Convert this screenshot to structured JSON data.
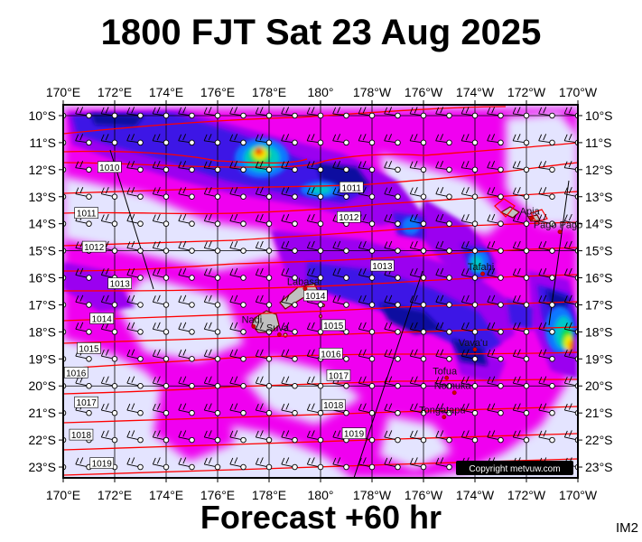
{
  "header": {
    "title": "1800 FJT Sat 23 Aug 2025"
  },
  "footer": {
    "forecast": "Forecast +60 hr",
    "code": "IM2"
  },
  "map": {
    "lon_labels": [
      "170°E",
      "172°E",
      "174°E",
      "176°E",
      "178°E",
      "180°",
      "178°W",
      "176°W",
      "174°W",
      "172°W",
      "170°W"
    ],
    "lat_labels": [
      "10°S",
      "11°S",
      "12°S",
      "13°S",
      "14°S",
      "15°S",
      "16°S",
      "17°S",
      "18°S",
      "19°S",
      "20°S",
      "21°S",
      "22°S",
      "23°S"
    ],
    "copyright": "Copyright metvuw.com",
    "places": [
      {
        "name": "Apia",
        "lon": -171.8,
        "lat": -13.8
      },
      {
        "name": "Pago Pago",
        "lon": -170.7,
        "lat": -14.3
      },
      {
        "name": "Tafahi",
        "lon": -173.7,
        "lat": -15.85
      },
      {
        "name": "Labasa",
        "lon": 179.4,
        "lat": -16.4
      },
      {
        "name": "Nadi",
        "lon": 177.4,
        "lat": -17.8
      },
      {
        "name": "Suva",
        "lon": 178.4,
        "lat": -18.1
      },
      {
        "name": "Vava'u",
        "lon": -174.0,
        "lat": -18.65
      },
      {
        "name": "Tofua",
        "lon": -175.1,
        "lat": -19.7
      },
      {
        "name": "Nomuka",
        "lon": -174.8,
        "lat": -20.25
      },
      {
        "name": "Tongatapu",
        "lon": -175.2,
        "lat": -21.15
      }
    ],
    "isobar_labels": [
      {
        "text": "1010",
        "lon": 171.8,
        "lat": -11.9
      },
      {
        "text": "1011",
        "lon": 170.9,
        "lat": -13.6
      },
      {
        "text": "1011",
        "lon": -178.8,
        "lat": -12.65
      },
      {
        "text": "1012",
        "lon": -178.9,
        "lat": -13.75
      },
      {
        "text": "1012",
        "lon": 171.2,
        "lat": -14.85
      },
      {
        "text": "1013",
        "lon": -177.6,
        "lat": -15.55
      },
      {
        "text": "1013",
        "lon": 172.2,
        "lat": -16.2
      },
      {
        "text": "1014",
        "lon": 179.8,
        "lat": -16.65
      },
      {
        "text": "1014",
        "lon": 171.5,
        "lat": -17.5
      },
      {
        "text": "1015",
        "lon": -179.5,
        "lat": -17.75
      },
      {
        "text": "1015",
        "lon": 171.0,
        "lat": -18.6
      },
      {
        "text": "1016",
        "lon": -179.6,
        "lat": -18.8
      },
      {
        "text": "1016",
        "lon": 170.5,
        "lat": -19.5
      },
      {
        "text": "1017",
        "lon": -179.3,
        "lat": -19.6
      },
      {
        "text": "1017",
        "lon": 170.9,
        "lat": -20.6
      },
      {
        "text": "1018",
        "lon": -179.5,
        "lat": -20.7
      },
      {
        "text": "1018",
        "lon": 170.7,
        "lat": -21.8
      },
      {
        "text": "1019",
        "lon": -178.7,
        "lat": -21.75
      },
      {
        "text": "1019",
        "lon": 171.5,
        "lat": -22.85
      }
    ],
    "legend": {
      "rain_colors": [
        "#e4e4ff",
        "#f000f0",
        "#9b00f0",
        "#3c14e6",
        "#0a0aa0",
        "#0a78ff",
        "#00c8c8",
        "#00dc3c",
        "#f0f000",
        "#ff8c00",
        "#e60000"
      ],
      "isobar_color": "#ff0000",
      "wind_station_color": "#000000"
    }
  }
}
